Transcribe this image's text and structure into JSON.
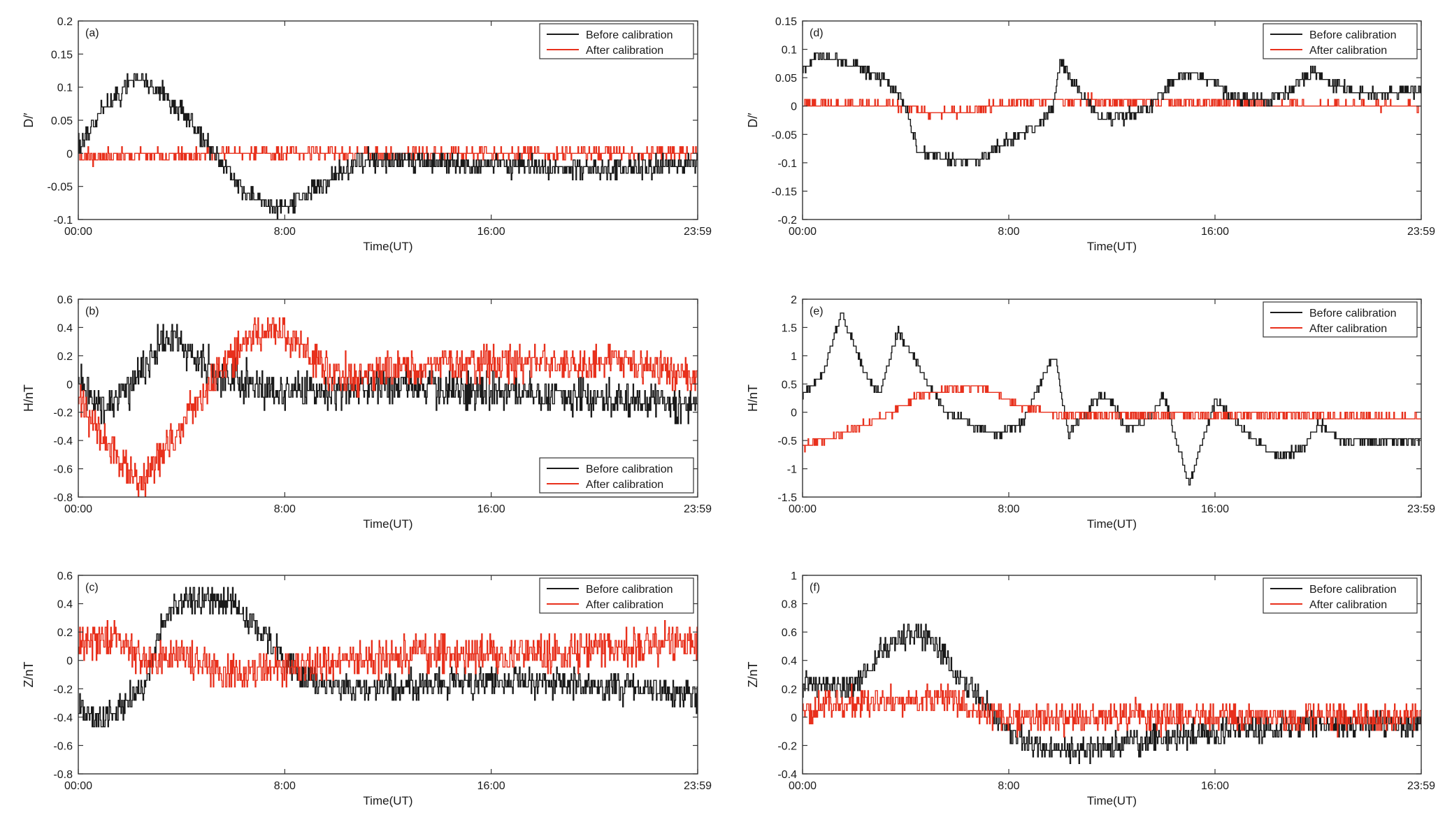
{
  "colors": {
    "before": "#1a1a1a",
    "after": "#e8301c",
    "axis": "#333333"
  },
  "chart_data": [
    {
      "id": "a",
      "panel_label": "(a)",
      "type": "line",
      "ylabel": "D/′",
      "xlabel": "Time(UT)",
      "xticks": [
        "00:00",
        "8:00",
        "16:00",
        "23:59"
      ],
      "ylim": [
        -0.1,
        0.2
      ],
      "yticks": [
        "-0.1",
        "-0.05",
        "0",
        "0.05",
        "0.1",
        "0.15",
        "0.2"
      ],
      "legend_position": "top-right",
      "series": [
        {
          "name": "Before calibration",
          "noise": 0.012,
          "seed": 11,
          "points": [
            [
              0,
              0.01
            ],
            [
              1,
              0.07
            ],
            [
              2.2,
              0.115
            ],
            [
              3,
              0.1
            ],
            [
              4.5,
              0.04
            ],
            [
              5.2,
              0.0
            ],
            [
              6.5,
              -0.06
            ],
            [
              7.8,
              -0.085
            ],
            [
              9,
              -0.055
            ],
            [
              10,
              -0.03
            ],
            [
              11,
              -0.01
            ],
            [
              14,
              -0.015
            ],
            [
              18,
              -0.02
            ],
            [
              20,
              -0.025
            ],
            [
              22,
              -0.02
            ],
            [
              24,
              -0.015
            ]
          ]
        },
        {
          "name": "After calibration",
          "noise": 0.008,
          "seed": 21,
          "points": [
            [
              0,
              -0.005
            ],
            [
              4.5,
              -0.002
            ],
            [
              5,
              0.0
            ],
            [
              24,
              0.0
            ]
          ]
        }
      ]
    },
    {
      "id": "b",
      "panel_label": "(b)",
      "type": "line",
      "ylabel": "H/nT",
      "xlabel": "Time(UT)",
      "xticks": [
        "00:00",
        "8:00",
        "16:00",
        "23:59"
      ],
      "ylim": [
        -0.8,
        0.6
      ],
      "yticks": [
        "-0.8",
        "-0.6",
        "-0.4",
        "-0.2",
        "0",
        "0.2",
        "0.4",
        "0.6"
      ],
      "legend_position": "bottom-right",
      "series": [
        {
          "name": "Before calibration",
          "noise": 0.1,
          "seed": 12,
          "points": [
            [
              0,
              0.0
            ],
            [
              1,
              -0.15
            ],
            [
              2,
              -0.05
            ],
            [
              3,
              0.25
            ],
            [
              3.7,
              0.35
            ],
            [
              4.5,
              0.2
            ],
            [
              5.5,
              0.05
            ],
            [
              8,
              -0.05
            ],
            [
              10,
              -0.05
            ],
            [
              12,
              0.0
            ],
            [
              16,
              -0.05
            ],
            [
              20,
              -0.1
            ],
            [
              24,
              -0.15
            ]
          ]
        },
        {
          "name": "After calibration",
          "noise": 0.1,
          "seed": 22,
          "points": [
            [
              0,
              -0.1
            ],
            [
              1,
              -0.4
            ],
            [
              2.3,
              -0.7
            ],
            [
              3,
              -0.55
            ],
            [
              4.5,
              -0.15
            ],
            [
              5.5,
              0.1
            ],
            [
              6.5,
              0.3
            ],
            [
              7.5,
              0.42
            ],
            [
              8.5,
              0.3
            ],
            [
              9.5,
              0.1
            ],
            [
              11,
              0.05
            ],
            [
              14,
              0.15
            ],
            [
              18,
              0.15
            ],
            [
              22,
              0.15
            ],
            [
              24,
              0.0
            ]
          ]
        }
      ]
    },
    {
      "id": "c",
      "panel_label": "(c)",
      "type": "line",
      "ylabel": "Z/nT",
      "xlabel": "Time(UT)",
      "xticks": [
        "00:00",
        "8:00",
        "16:00",
        "23:59"
      ],
      "ylim": [
        -0.8,
        0.6
      ],
      "yticks": [
        "-0.8",
        "-0.6",
        "-0.4",
        "-0.2",
        "0",
        "0.2",
        "0.4",
        "0.6"
      ],
      "legend_position": "top-right",
      "series": [
        {
          "name": "Before calibration",
          "noise": 0.08,
          "seed": 13,
          "points": [
            [
              0,
              -0.35
            ],
            [
              1,
              -0.42
            ],
            [
              2.5,
              -0.2
            ],
            [
              3.3,
              0.3
            ],
            [
              4,
              0.45
            ],
            [
              6,
              0.4
            ],
            [
              7.5,
              0.1
            ],
            [
              8.5,
              -0.1
            ],
            [
              10,
              -0.2
            ],
            [
              14,
              -0.15
            ],
            [
              18,
              -0.15
            ],
            [
              22,
              -0.2
            ],
            [
              24,
              -0.25
            ]
          ]
        },
        {
          "name": "After calibration",
          "noise": 0.1,
          "seed": 23,
          "points": [
            [
              0,
              0.1
            ],
            [
              1.5,
              0.15
            ],
            [
              2.5,
              0.0
            ],
            [
              4,
              0.05
            ],
            [
              5.5,
              -0.1
            ],
            [
              8,
              -0.05
            ],
            [
              11,
              0.0
            ],
            [
              13,
              0.05
            ],
            [
              18,
              0.05
            ],
            [
              22,
              0.1
            ],
            [
              24,
              0.15
            ]
          ]
        }
      ]
    },
    {
      "id": "d",
      "panel_label": "(d)",
      "type": "line",
      "ylabel": "D/′",
      "xlabel": "Time(UT)",
      "xticks": [
        "00:00",
        "8:00",
        "16:00",
        "23:59"
      ],
      "ylim": [
        -0.2,
        0.15
      ],
      "yticks": [
        "-0.2",
        "-0.15",
        "-0.1",
        "-0.05",
        "0",
        "0.05",
        "0.1",
        "0.15"
      ],
      "legend_position": "top-right",
      "series": [
        {
          "name": "Before calibration",
          "noise": 0.008,
          "seed": 14,
          "points": [
            [
              0,
              0.06
            ],
            [
              0.5,
              0.09
            ],
            [
              1.5,
              0.08
            ],
            [
              3,
              0.05
            ],
            [
              3.8,
              0.02
            ],
            [
              4.5,
              -0.08
            ],
            [
              5.5,
              -0.09
            ],
            [
              6.5,
              -0.1
            ],
            [
              8,
              -0.06
            ],
            [
              9,
              -0.04
            ],
            [
              9.7,
              0.0
            ],
            [
              10,
              0.08
            ],
            [
              10.5,
              0.04
            ],
            [
              11.5,
              -0.02
            ],
            [
              12.5,
              -0.02
            ],
            [
              13.5,
              0.0
            ],
            [
              14.5,
              0.05
            ],
            [
              15.2,
              0.06
            ],
            [
              16,
              0.04
            ],
            [
              16.5,
              0.02
            ],
            [
              18,
              0.01
            ],
            [
              19,
              0.03
            ],
            [
              19.8,
              0.065
            ],
            [
              20.5,
              0.04
            ],
            [
              22,
              0.02
            ],
            [
              24,
              0.03
            ]
          ]
        },
        {
          "name": "After calibration",
          "noise": 0.006,
          "seed": 24,
          "points": [
            [
              0,
              0.005
            ],
            [
              4,
              0.0
            ],
            [
              5,
              -0.015
            ],
            [
              6,
              -0.01
            ],
            [
              8,
              0.005
            ],
            [
              10,
              0.01
            ],
            [
              24,
              0.0
            ]
          ]
        }
      ]
    },
    {
      "id": "e",
      "panel_label": "(e)",
      "type": "line",
      "ylabel": "H/nT",
      "xlabel": "Time(UT)",
      "xticks": [
        "00:00",
        "8:00",
        "16:00",
        "23:59"
      ],
      "ylim": [
        -1.5,
        2
      ],
      "yticks": [
        "-1.5",
        "-1",
        "-0.5",
        "0",
        "0.5",
        "1",
        "1.5",
        "2"
      ],
      "legend_position": "top-right",
      "series": [
        {
          "name": "Before calibration",
          "noise": 0.06,
          "seed": 15,
          "points": [
            [
              0,
              0.3
            ],
            [
              0.8,
              0.7
            ],
            [
              1.5,
              1.75
            ],
            [
              2.5,
              0.6
            ],
            [
              3,
              0.35
            ],
            [
              3.7,
              1.45
            ],
            [
              4.5,
              0.8
            ],
            [
              5.5,
              0.0
            ],
            [
              6.5,
              -0.2
            ],
            [
              7.5,
              -0.4
            ],
            [
              8.5,
              -0.2
            ],
            [
              9.5,
              0.8
            ],
            [
              9.8,
              1.0
            ],
            [
              10.3,
              -0.4
            ],
            [
              11,
              0.0
            ],
            [
              11.5,
              0.3
            ],
            [
              12,
              0.2
            ],
            [
              12.5,
              -0.3
            ],
            [
              13.5,
              -0.1
            ],
            [
              14,
              0.3
            ],
            [
              15,
              -1.3
            ],
            [
              15.5,
              -0.5
            ],
            [
              16,
              0.2
            ],
            [
              17,
              -0.3
            ],
            [
              18.5,
              -0.8
            ],
            [
              19.5,
              -0.6
            ],
            [
              20,
              -0.2
            ],
            [
              21,
              -0.5
            ],
            [
              24,
              -0.5
            ]
          ]
        },
        {
          "name": "After calibration",
          "noise": 0.05,
          "seed": 25,
          "points": [
            [
              0,
              -0.6
            ],
            [
              2,
              -0.3
            ],
            [
              3.5,
              0.0
            ],
            [
              4.5,
              0.3
            ],
            [
              5.5,
              0.4
            ],
            [
              7,
              0.45
            ],
            [
              8.5,
              0.1
            ],
            [
              10,
              -0.05
            ],
            [
              14,
              -0.05
            ],
            [
              18,
              -0.05
            ],
            [
              24,
              -0.1
            ]
          ]
        }
      ]
    },
    {
      "id": "f",
      "panel_label": "(f)",
      "type": "line",
      "ylabel": "Z/nT",
      "xlabel": "Time(UT)",
      "xticks": [
        "00:00",
        "8:00",
        "16:00",
        "23:59"
      ],
      "ylim": [
        -0.4,
        1
      ],
      "yticks": [
        "-0.4",
        "-0.2",
        "0",
        "0.2",
        "0.4",
        "0.6",
        "0.8",
        "1"
      ],
      "legend_position": "top-right",
      "series": [
        {
          "name": "Before calibration",
          "noise": 0.07,
          "seed": 16,
          "points": [
            [
              0,
              0.25
            ],
            [
              1,
              0.2
            ],
            [
              2,
              0.2
            ],
            [
              3,
              0.45
            ],
            [
              4,
              0.6
            ],
            [
              5,
              0.55
            ],
            [
              6,
              0.3
            ],
            [
              7,
              0.1
            ],
            [
              8,
              -0.1
            ],
            [
              9,
              -0.2
            ],
            [
              10,
              -0.25
            ],
            [
              12,
              -0.2
            ],
            [
              16,
              -0.1
            ],
            [
              20,
              -0.05
            ],
            [
              24,
              -0.05
            ]
          ]
        },
        {
          "name": "After calibration",
          "noise": 0.08,
          "seed": 26,
          "points": [
            [
              0,
              0.05
            ],
            [
              2,
              0.1
            ],
            [
              4,
              0.1
            ],
            [
              5.5,
              0.15
            ],
            [
              6.5,
              0.05
            ],
            [
              8,
              0.0
            ],
            [
              24,
              0.0
            ]
          ]
        }
      ]
    }
  ]
}
